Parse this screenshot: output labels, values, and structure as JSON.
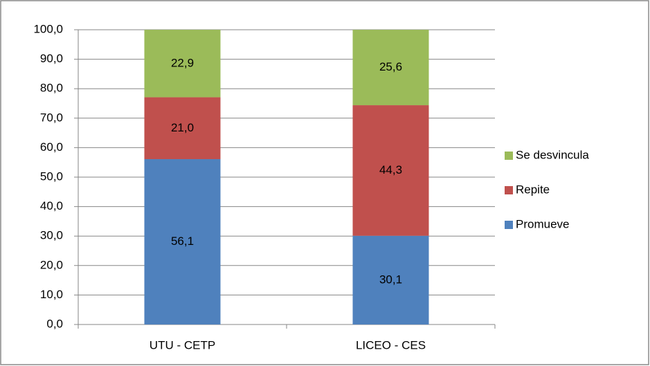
{
  "chart_data": {
    "type": "stacked_bar",
    "categories": [
      "UTU - CETP",
      "LICEO - CES"
    ],
    "series": [
      {
        "name": "Promueve",
        "color": "#4f81bd",
        "values": [
          56.1,
          30.1
        ],
        "value_labels": [
          "56,1",
          "30,1"
        ]
      },
      {
        "name": "Repite",
        "color": "#c0504d",
        "values": [
          21.0,
          44.3
        ],
        "value_labels": [
          "21,0",
          "44,3"
        ]
      },
      {
        "name": "Se desvincula",
        "color": "#9bbb59",
        "values": [
          22.9,
          25.6
        ],
        "value_labels": [
          "22,9",
          "25,6"
        ]
      }
    ],
    "ylim": [
      0,
      100
    ],
    "yticks": [
      {
        "value": 0,
        "label": "0,0"
      },
      {
        "value": 10,
        "label": "10,0"
      },
      {
        "value": 20,
        "label": "20,0"
      },
      {
        "value": 30,
        "label": "30,0"
      },
      {
        "value": 40,
        "label": "40,0"
      },
      {
        "value": 50,
        "label": "50,0"
      },
      {
        "value": 60,
        "label": "60,0"
      },
      {
        "value": 70,
        "label": "70,0"
      },
      {
        "value": 80,
        "label": "80,0"
      },
      {
        "value": 90,
        "label": "90,0"
      },
      {
        "value": 100,
        "label": "100,0"
      }
    ],
    "grid": true,
    "legend": "right"
  }
}
